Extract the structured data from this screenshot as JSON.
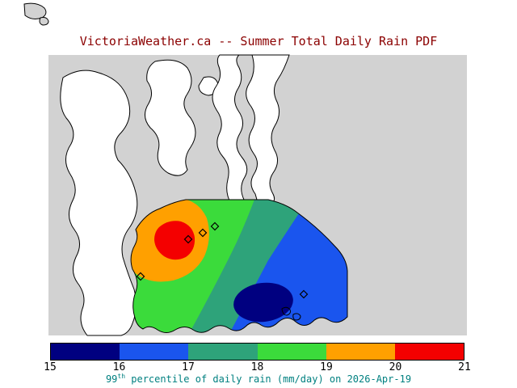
{
  "title": {
    "text": "VictoriaWeather.ca -- Summer Total Daily Rain PDF",
    "color": "#8b0000"
  },
  "map": {
    "palette": {
      "ocean": "#d2d2d2",
      "land": "#ffffff",
      "coastline": "#000000",
      "marker": "#000000"
    }
  },
  "colorbar": {
    "ticks": [
      "15",
      "16",
      "17",
      "18",
      "19",
      "20",
      "21"
    ],
    "segments": [
      {
        "range": "15-16",
        "color": "#000080"
      },
      {
        "range": "16-17",
        "color": "#1a55ee"
      },
      {
        "range": "17-18",
        "color": "#2ea37a"
      },
      {
        "range": "18-19",
        "color": "#3bdb3b"
      },
      {
        "range": "19-20",
        "color": "#ffa000"
      },
      {
        "range": "20-21",
        "color": "#f40000"
      }
    ]
  },
  "caption": {
    "number": "99",
    "ordinal": "th",
    "rest": " percentile of daily rain (mm/day) on 2026-Apr-19",
    "color": "#008080"
  },
  "chart_data": {
    "type": "heatmap",
    "title": "VictoriaWeather.ca -- Summer Total Daily Rain PDF",
    "variable": "99th percentile of daily rain",
    "units": "mm/day",
    "date": "2026-Apr-19",
    "levels": [
      15,
      16,
      17,
      18,
      19,
      20,
      21
    ],
    "level_colors": [
      "#000080",
      "#1a55ee",
      "#2ea37a",
      "#3bdb3b",
      "#ffa000",
      "#f40000"
    ],
    "features": [
      {
        "feature": "local maximum 20-21 mm/day",
        "map_position": "west-central red core ringed by orange (19-20)"
      },
      {
        "feature": "broad mid-range 17-19 mm/day",
        "map_position": "central band sweeping NE to SW (green and sea-green)"
      },
      {
        "feature": "local minimum 15-16 mm/day",
        "map_position": "south-east navy core inside blue (16-17) region"
      },
      {
        "feature": "station markers (open diamonds)",
        "count": 5
      }
    ]
  }
}
